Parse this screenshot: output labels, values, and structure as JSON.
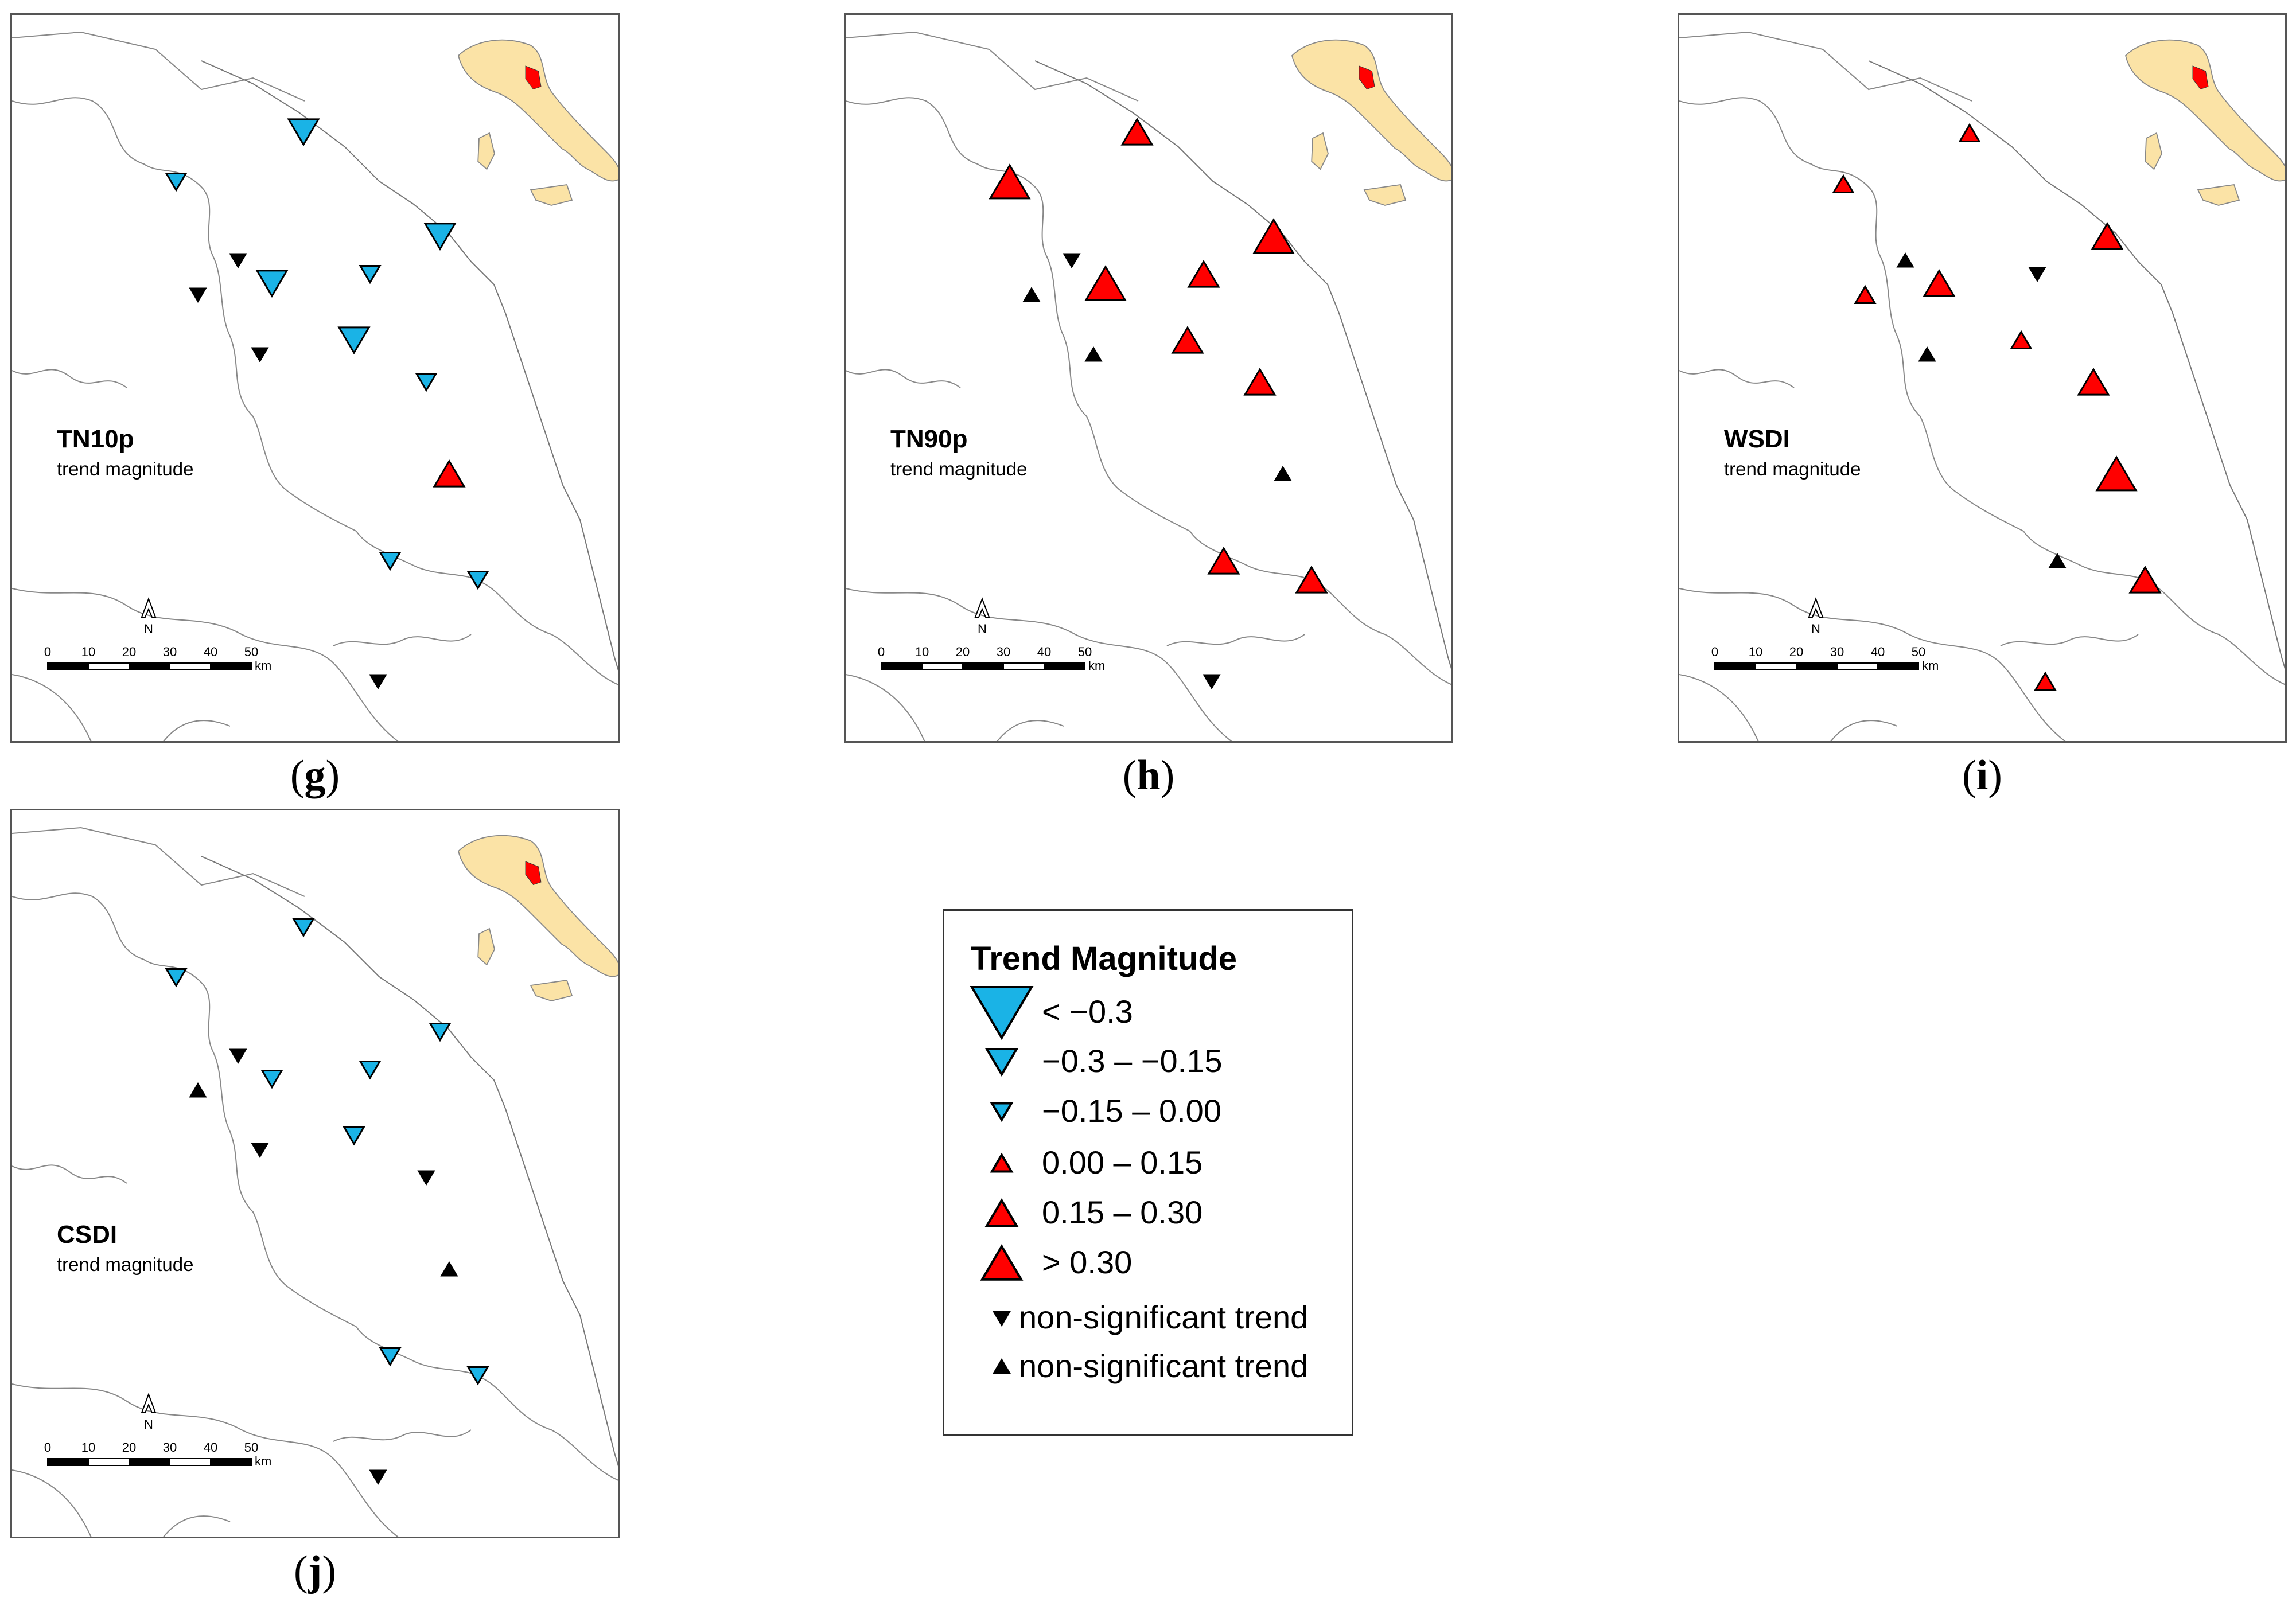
{
  "panels": [
    {
      "id": "g",
      "title": "TN10p",
      "subtitle": "trend magnitude",
      "caption": "g",
      "stations": [
        "neg-med",
        "neg-small",
        "neg-med",
        "ns-down",
        "neg-med",
        "neg-small",
        "ns-down",
        "neg-med",
        "ns-down",
        "neg-small",
        "pos-med",
        "neg-small",
        "neg-small",
        "ns-down"
      ]
    },
    {
      "id": "h",
      "title": "TN90p",
      "subtitle": "trend magnitude",
      "caption": "h",
      "stations": [
        "pos-med",
        "pos-large",
        "pos-large",
        "ns-down",
        "pos-large",
        "pos-med",
        "ns-up",
        "pos-med",
        "ns-up",
        "pos-med",
        "ns-up",
        "pos-med",
        "pos-med",
        "ns-down"
      ]
    },
    {
      "id": "i",
      "title": "WSDI",
      "subtitle": "trend magnitude",
      "caption": "i",
      "stations": [
        "pos-small",
        "pos-small",
        "pos-med",
        "ns-up",
        "pos-med",
        "ns-down",
        "pos-small",
        "pos-small",
        "ns-up",
        "pos-med",
        "pos-large",
        "ns-up",
        "pos-med",
        "pos-small"
      ]
    },
    {
      "id": "j",
      "title": "CSDI",
      "subtitle": "trend magnitude",
      "caption": "j",
      "stations": [
        "neg-small",
        "neg-small",
        "neg-small",
        "ns-down",
        "neg-small",
        "neg-small",
        "ns-up",
        "neg-small",
        "ns-down",
        "ns-down",
        "ns-up",
        "neg-small",
        "neg-small",
        "ns-down"
      ]
    }
  ],
  "scale": {
    "ticks": [
      "0",
      "10",
      "20",
      "30",
      "40",
      "50"
    ],
    "unit": "km",
    "north": "N"
  },
  "legend": {
    "title": "Trend Magnitude",
    "items": [
      {
        "key": "neg-large",
        "label": "< −0.3"
      },
      {
        "key": "neg-med",
        "label": "−0.3 – −0.15"
      },
      {
        "key": "neg-small",
        "label": "−0.15 – 0.00"
      },
      {
        "key": "pos-small",
        "label": "0.00 – 0.15"
      },
      {
        "key": "pos-med",
        "label": "0.15 – 0.30"
      },
      {
        "key": "pos-large",
        "label": "> 0.30"
      },
      {
        "key": "ns-down",
        "label": "non-significant trend"
      },
      {
        "key": "ns-up",
        "label": "non-significant trend"
      }
    ]
  },
  "colors": {
    "negative": "#1ab3e6",
    "positive": "#ff0000",
    "nonsig": "#000000",
    "region": "#ff0000",
    "italy": "#fbe3a6",
    "border": "#888888"
  }
}
